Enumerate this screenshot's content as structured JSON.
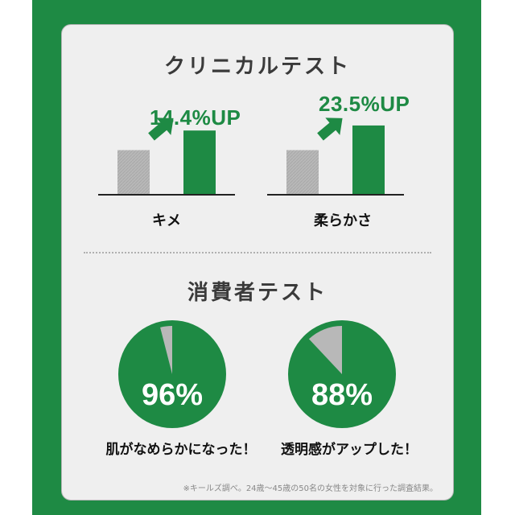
{
  "colors": {
    "brand_green": "#1e8a44",
    "baseline_bar": "#b8b8b8",
    "pie_rest": "#b8b8b8"
  },
  "clinical": {
    "title": "クリニカルテスト"
  },
  "consumer": {
    "title": "消費者テスト"
  },
  "footnote": "※キールズ調べ。24歳〜45歳の50名の女性を対象に行った調査結果。",
  "chart_data": [
    {
      "type": "bar",
      "title": "クリニカルテスト",
      "category": "キメ",
      "values": [
        100,
        114.4
      ],
      "annotation": "14.4%UP",
      "icon": "arrow-up-right-icon"
    },
    {
      "type": "bar",
      "title": "クリニカルテスト",
      "category": "柔らかさ",
      "values": [
        100,
        123.5
      ],
      "annotation": "23.5%UP",
      "icon": "arrow-up-right-icon"
    },
    {
      "type": "pie",
      "title": "消費者テスト",
      "value": 96,
      "value_label": "96%",
      "caption": "肌がなめらかになった！"
    },
    {
      "type": "pie",
      "title": "消費者テスト",
      "value": 88,
      "value_label": "88%",
      "caption": "透明感がアップした！"
    }
  ]
}
